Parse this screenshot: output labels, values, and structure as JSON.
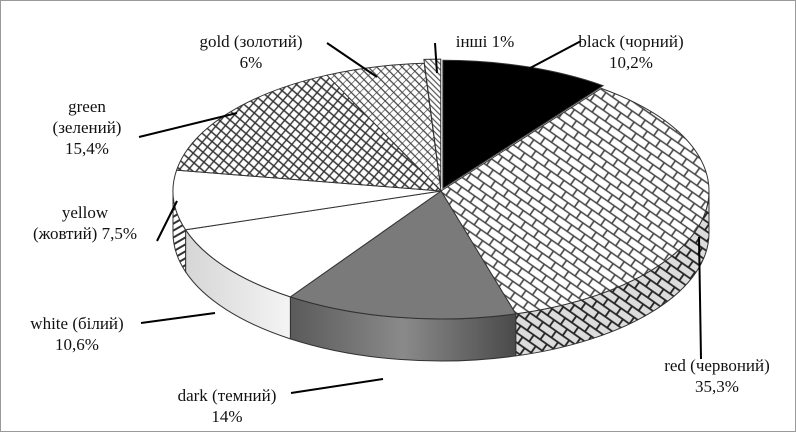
{
  "chart_data": {
    "type": "pie",
    "title": "",
    "slices": [
      {
        "name": "black (чорний)",
        "value": 10.2,
        "line1": "black (чорний)",
        "line2": "10,2%"
      },
      {
        "name": "red (червоний)",
        "value": 35.3,
        "line1": "red (червоний)",
        "line2": "35,3%"
      },
      {
        "name": "dark (темний)",
        "value": 14,
        "line1": "dark (темний)",
        "line2": "14%"
      },
      {
        "name": "white (білий)",
        "value": 10.6,
        "line1": "white (білий)",
        "line2": "10,6%"
      },
      {
        "name": "yellow (жовтий)",
        "value": 7.5,
        "line1": "yellow",
        "line2": "(жовтий) 7,5%"
      },
      {
        "name": "green (зелений)",
        "value": 15.4,
        "line1": "green",
        "line2": "(зелений)",
        "line3": "15,4%"
      },
      {
        "name": "gold (золотий)",
        "value": 6,
        "line1": "gold (золотий)",
        "line2": "6%"
      },
      {
        "name": "інші",
        "value": 1,
        "line1": "інші 1%"
      }
    ],
    "legend": "none",
    "style": "3d-exploded-pie-with-patterns"
  }
}
